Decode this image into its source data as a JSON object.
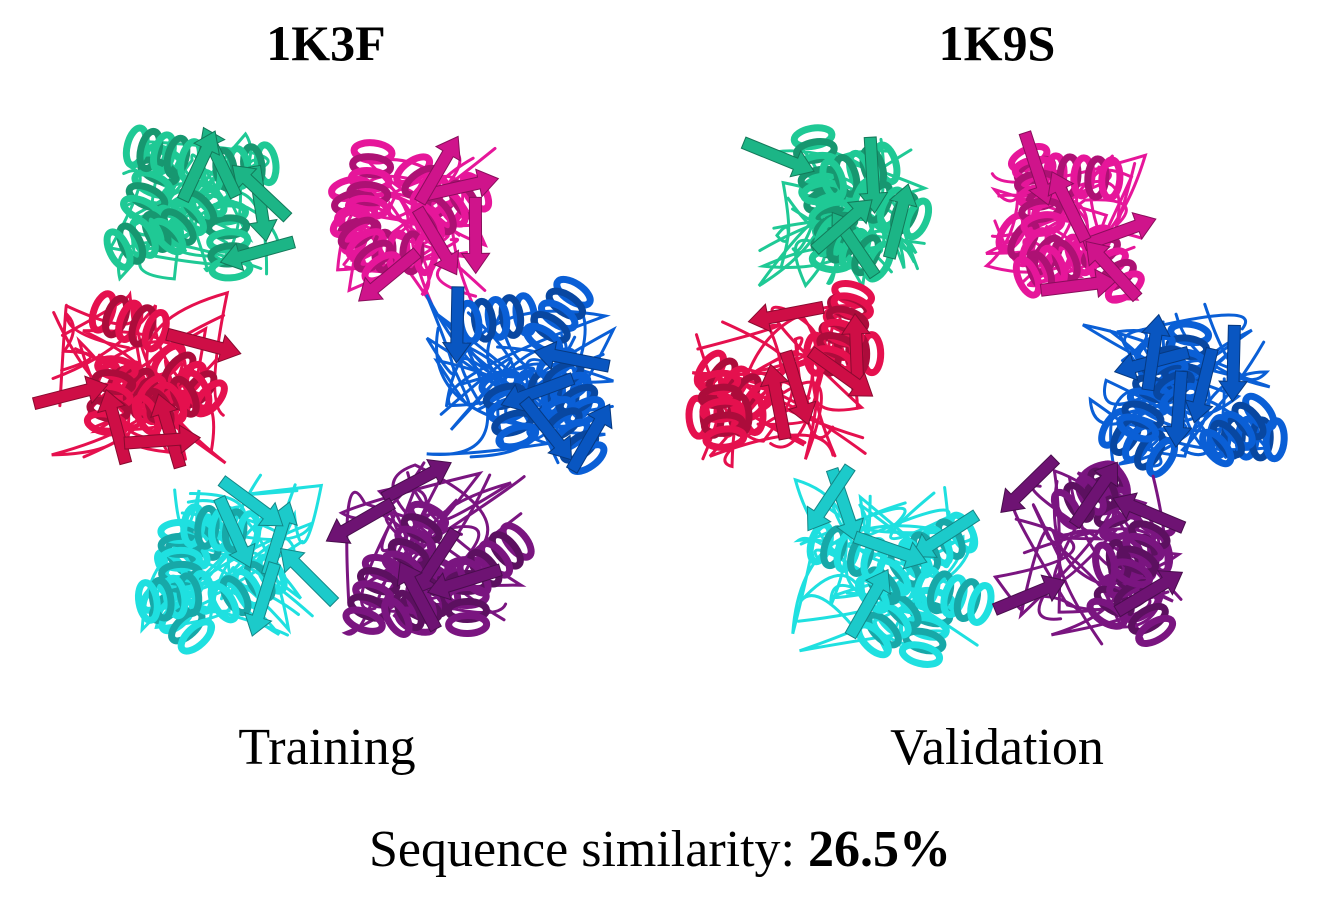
{
  "panels": [
    {
      "id": "left",
      "title": "1K3F",
      "caption": "Training"
    },
    {
      "id": "right",
      "title": "1K9S",
      "caption": "Validation"
    }
  ],
  "summary": {
    "label": "Sequence similarity: ",
    "value": "26.5%"
  },
  "colors": {
    "chain_green": "#1fc995",
    "chain_magenta": "#e6169a",
    "chain_red": "#e5104e",
    "chain_blue": "#0a5fd6",
    "chain_cyan": "#1fe0e0",
    "chain_purple": "#7a1580"
  }
}
